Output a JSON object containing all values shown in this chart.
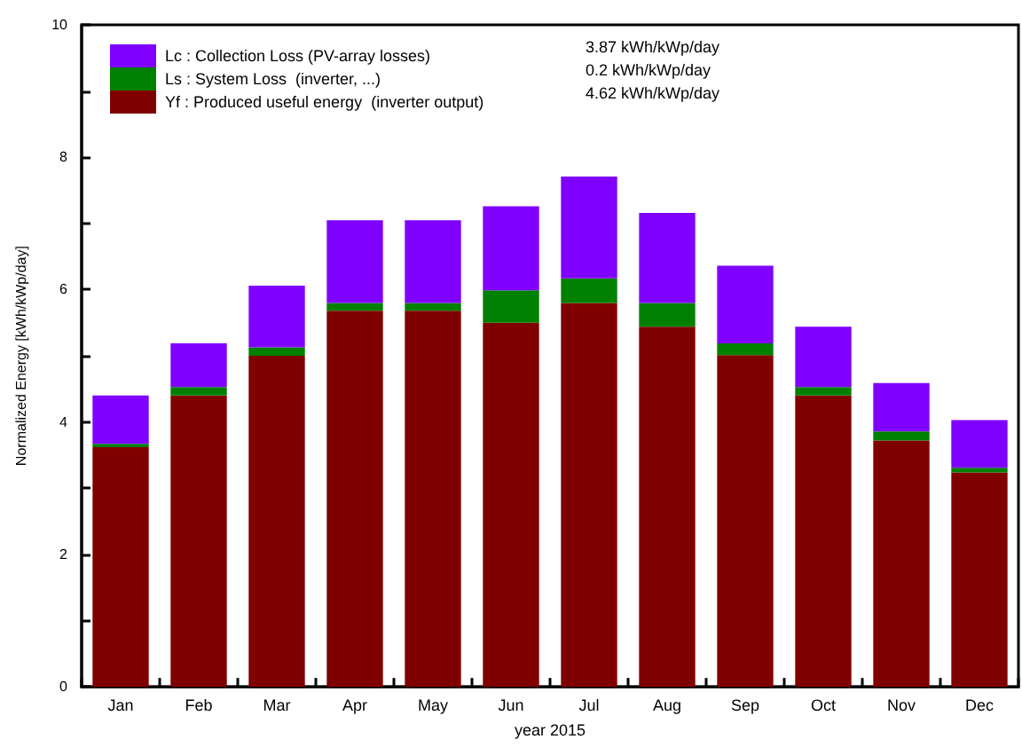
{
  "chart_data": {
    "type": "bar",
    "stacked": true,
    "xlabel": "year 2015",
    "ylabel": "Normalized Energy [kWh/kWp/day]",
    "categories": [
      "Jan",
      "Feb",
      "Mar",
      "Apr",
      "May",
      "Jun",
      "Jul",
      "Aug",
      "Sep",
      "Oct",
      "Nov",
      "Dec"
    ],
    "series": [
      {
        "name": "Yf : Produced useful energy  (inverter output)",
        "color": "#800000",
        "values": [
          3.62,
          4.4,
          5.0,
          5.68,
          5.68,
          5.5,
          5.8,
          5.44,
          5.01,
          4.4,
          3.72,
          3.24
        ]
      },
      {
        "name": "Ls : System Loss  (inverter, ...)",
        "color": "#008000",
        "values": [
          0.05,
          0.13,
          0.13,
          0.12,
          0.12,
          0.49,
          0.37,
          0.36,
          0.18,
          0.13,
          0.14,
          0.07
        ]
      },
      {
        "name": "Lc : Collection Loss (PV-array losses)",
        "color": "#8000ff",
        "values": [
          0.73,
          0.66,
          0.93,
          1.25,
          1.25,
          1.27,
          1.54,
          1.36,
          1.17,
          0.91,
          0.73,
          0.72
        ]
      }
    ],
    "annotations": [
      "4.62 kWh/kWp/day",
      "0.2 kWh/kWp/day",
      "3.87 kWh/kWp/day"
    ],
    "ylim": [
      0,
      10
    ],
    "yticks": [
      0,
      {
        "value": 1,
        "label": null
      },
      2,
      {
        "value": 3,
        "label": null
      },
      4,
      {
        "value": 5,
        "label": null
      },
      6,
      {
        "value": 7,
        "label": null
      },
      8,
      {
        "value": 9,
        "label": null
      },
      10
    ],
    "grid": false,
    "legend": "top left"
  }
}
